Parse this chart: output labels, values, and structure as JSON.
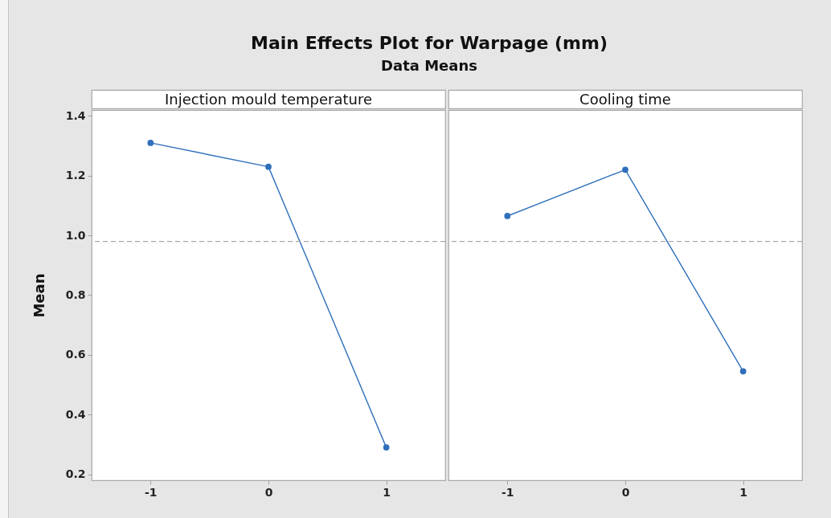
{
  "chart_data": [
    {
      "type": "line",
      "title": "Main Effects Plot for Warpage (mm)",
      "subtitle": "Data Means",
      "xlabel": "Injection mould temperature",
      "ylabel": "Mean",
      "x": [
        -1,
        0,
        1
      ],
      "series": [
        {
          "color": "#2f6fbb",
          "values": [
            1.31,
            1.23,
            0.29
          ]
        }
      ],
      "xlim": [
        -1.5,
        1.5
      ],
      "xticks": [
        -1,
        0,
        1
      ],
      "ylim": [
        0.18,
        1.42
      ],
      "yticks": [
        0.2,
        0.4,
        0.6,
        0.8,
        {
          "value": 1,
          "label": "1.0"
        },
        1.2,
        1.4
      ],
      "ref_lines": [
        {
          "axis": "y",
          "value": 0.98,
          "color": "#aaaaaa",
          "line_style": "dashed"
        }
      ],
      "marker": "circle"
    },
    {
      "type": "line",
      "xlabel": "Cooling time",
      "x": [
        -1,
        0,
        1
      ],
      "series": [
        {
          "color": "#2f6fbb",
          "values": [
            1.065,
            1.22,
            0.545
          ]
        }
      ],
      "xlim": [
        -1.5,
        1.5
      ],
      "xticks": [
        -1,
        0,
        1
      ],
      "ylim": [
        0.18,
        1.42
      ],
      "tick_labels": "x",
      "ref_lines": [
        {
          "axis": "y",
          "value": 0.98,
          "color": "#aaaaaa",
          "line_style": "dashed"
        }
      ],
      "marker": "circle"
    }
  ]
}
